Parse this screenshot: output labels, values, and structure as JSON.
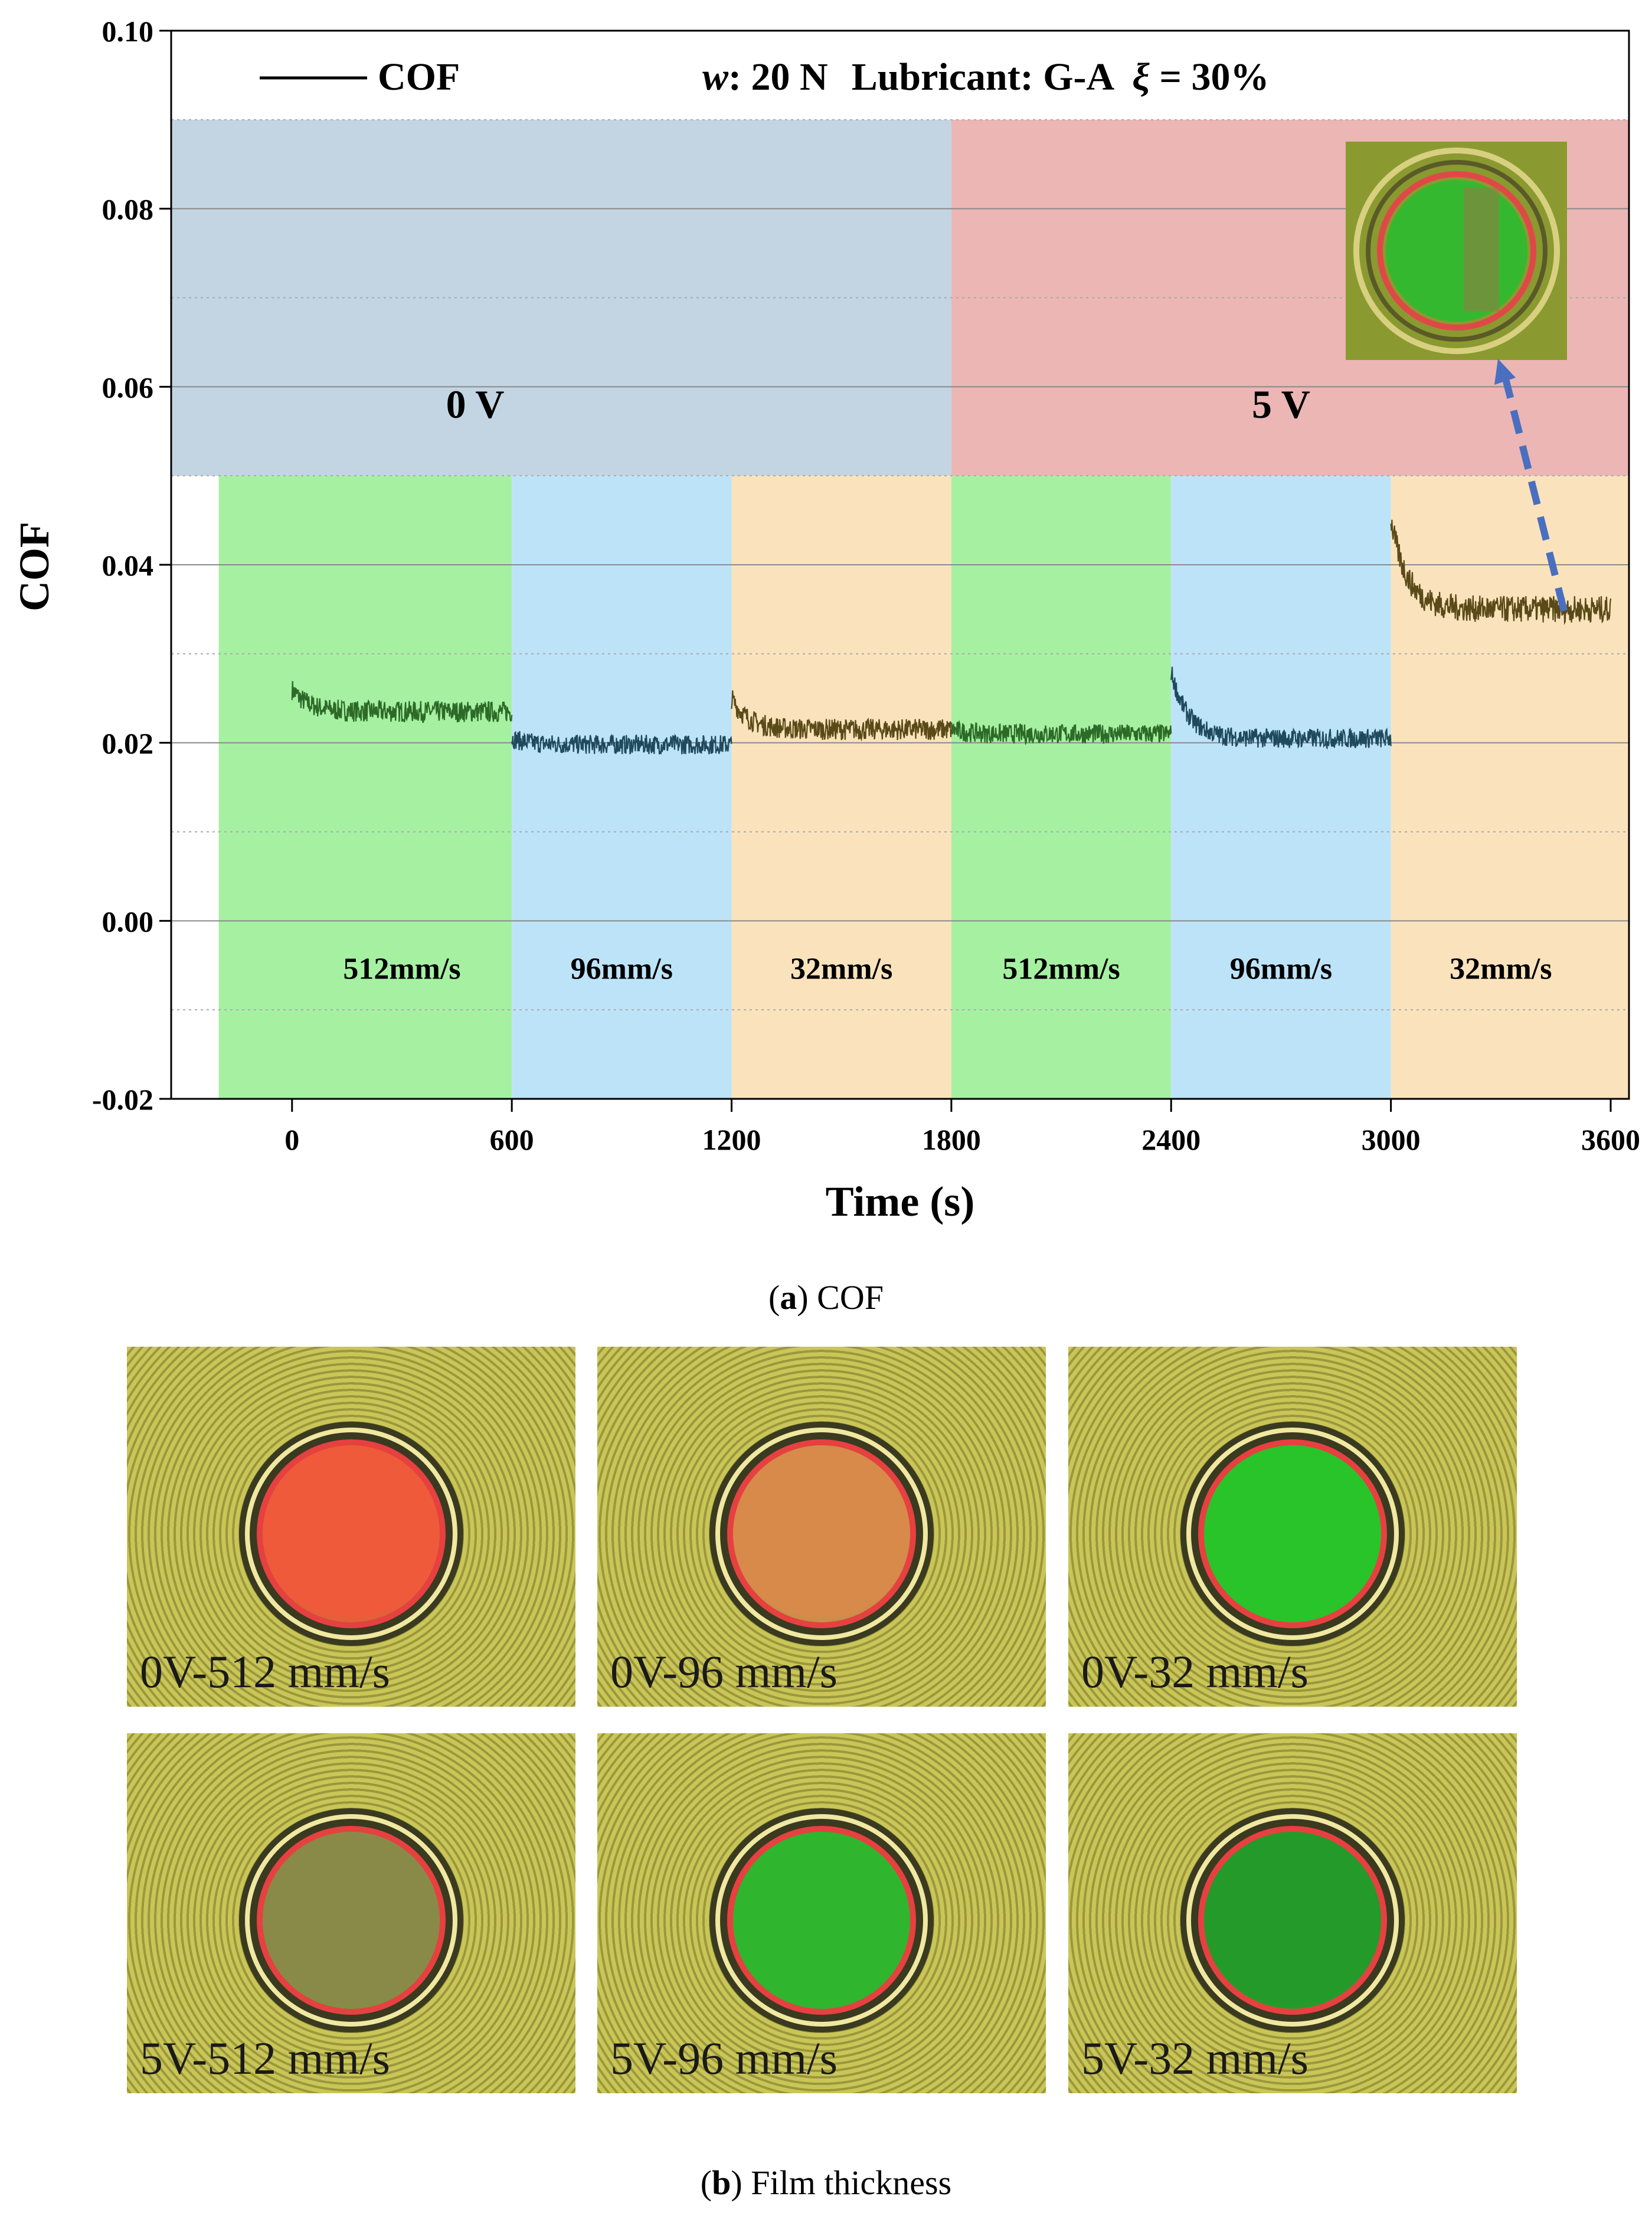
{
  "chart_data": {
    "type": "line",
    "title": "",
    "legend": {
      "line_label": "COF",
      "placement": "top-left"
    },
    "header_annotation": {
      "w_symbol": "w",
      "w_value": ": 20 N",
      "lubricant": "Lubricant: G-A",
      "xi_symbol": "ξ",
      "xi_value": " = 30%"
    },
    "xlabel": "Time (s)",
    "ylabel": "COF",
    "xlim": [
      -330,
      3650
    ],
    "ylim": [
      -0.02,
      0.1
    ],
    "xticks": [
      0,
      600,
      1200,
      1800,
      2400,
      3000,
      3600
    ],
    "xtick_labels": [
      "0",
      "600",
      "1200",
      "1800",
      "2400",
      "3000",
      "3600"
    ],
    "yticks": [
      -0.02,
      0.0,
      0.02,
      0.04,
      0.06,
      0.08,
      0.1
    ],
    "ytick_labels": [
      "-0.02",
      "0.00",
      "0.02",
      "0.04",
      "0.06",
      "0.08",
      "0.10"
    ],
    "voltage_regions": [
      {
        "label": "0 V",
        "x_start": -330,
        "x_end": 1800,
        "y_start": 0.05,
        "y_end": 0.09,
        "color": "#c3d5e2"
      },
      {
        "label": "5 V",
        "x_start": 1800,
        "x_end": 3650,
        "y_start": 0.05,
        "y_end": 0.09,
        "color": "#ebb6b4"
      }
    ],
    "speed_regions": [
      {
        "label": "512mm/s",
        "x_start": -200,
        "x_end": 600,
        "color": "#a6f0a2"
      },
      {
        "label": "96mm/s",
        "x_start": 600,
        "x_end": 1200,
        "color": "#bde3f8"
      },
      {
        "label": "32mm/s",
        "x_start": 1200,
        "x_end": 1800,
        "color": "#fae3bc"
      },
      {
        "label": "512mm/s",
        "x_start": 1800,
        "x_end": 2400,
        "color": "#a6f0a2"
      },
      {
        "label": "96mm/s",
        "x_start": 2400,
        "x_end": 3000,
        "color": "#bde3f8"
      },
      {
        "label": "32mm/s",
        "x_start": 3000,
        "x_end": 3650,
        "color": "#fae3bc"
      }
    ],
    "series": [
      {
        "name": "0V-512 mm/s",
        "x_start": 0,
        "x_end": 600,
        "start_value": 0.026,
        "mean": 0.0235,
        "noise": 0.0012,
        "color": "#2d6a28"
      },
      {
        "name": "0V-96 mm/s",
        "x_start": 600,
        "x_end": 1200,
        "start_value": 0.0205,
        "mean": 0.0198,
        "noise": 0.0011,
        "color": "#1f4a5e"
      },
      {
        "name": "0V-32 mm/s",
        "x_start": 1200,
        "x_end": 1800,
        "start_value": 0.025,
        "mean": 0.0215,
        "noise": 0.0012,
        "color": "#5a4a18"
      },
      {
        "name": "5V-512 mm/s",
        "x_start": 1800,
        "x_end": 2400,
        "start_value": 0.0215,
        "mean": 0.021,
        "noise": 0.0011,
        "color": "#2d6a28"
      },
      {
        "name": "5V-96 mm/s",
        "x_start": 2400,
        "x_end": 3000,
        "start_value": 0.028,
        "mean": 0.0205,
        "noise": 0.0011,
        "color": "#1f4a5e"
      },
      {
        "name": "5V-32 mm/s",
        "x_start": 3000,
        "x_end": 3600,
        "start_value": 0.045,
        "mean": 0.035,
        "noise": 0.0015,
        "color": "#5a4a18"
      }
    ]
  },
  "captions": {
    "a_letter": "a",
    "a_text": " COF",
    "b_letter": "b",
    "b_text": " Film thickness"
  },
  "film_images": [
    {
      "label": "0V-512 mm/s",
      "center_color": "#ef5a3a"
    },
    {
      "label": "0V-96 mm/s",
      "center_color": "#d88a4a"
    },
    {
      "label": "0V-32 mm/s",
      "center_color": "#29c42a"
    },
    {
      "label": "5V-512 mm/s",
      "center_color": "#8a8a48"
    },
    {
      "label": "5V-96 mm/s",
      "center_color": "#2fb52e"
    },
    {
      "label": "5V-32 mm/s",
      "center_color": "#239a2a"
    }
  ]
}
